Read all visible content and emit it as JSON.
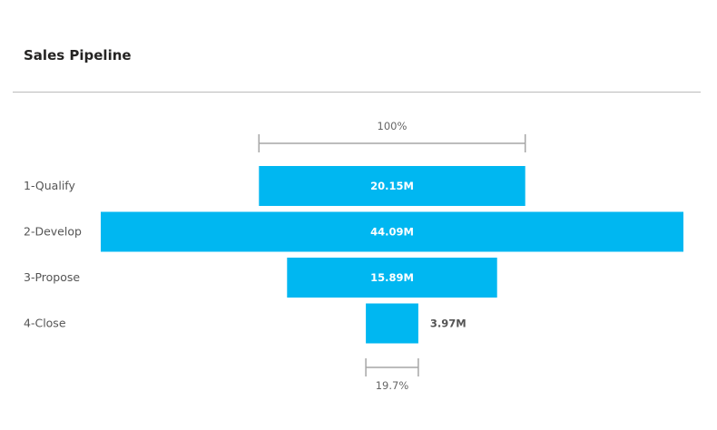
{
  "header": {
    "title": "Sales Pipeline"
  },
  "colors": {
    "bar": "#00b7f1",
    "bracket": "#a6a6a6",
    "divider": "#bcbcbc"
  },
  "chart_data": {
    "type": "bar",
    "subtype": "funnel",
    "title": "Sales Pipeline",
    "categories": [
      "1-Qualify",
      "2-Develop",
      "3-Propose",
      "4-Close"
    ],
    "values": [
      20.15,
      44.09,
      15.89,
      3.97
    ],
    "value_unit": "M",
    "data_labels": [
      "20.15M",
      "44.09M",
      "15.89M",
      "3.97M"
    ],
    "top_percent_label": "100%",
    "bottom_percent_label": "19.7%",
    "legend": "none",
    "grid": false
  }
}
